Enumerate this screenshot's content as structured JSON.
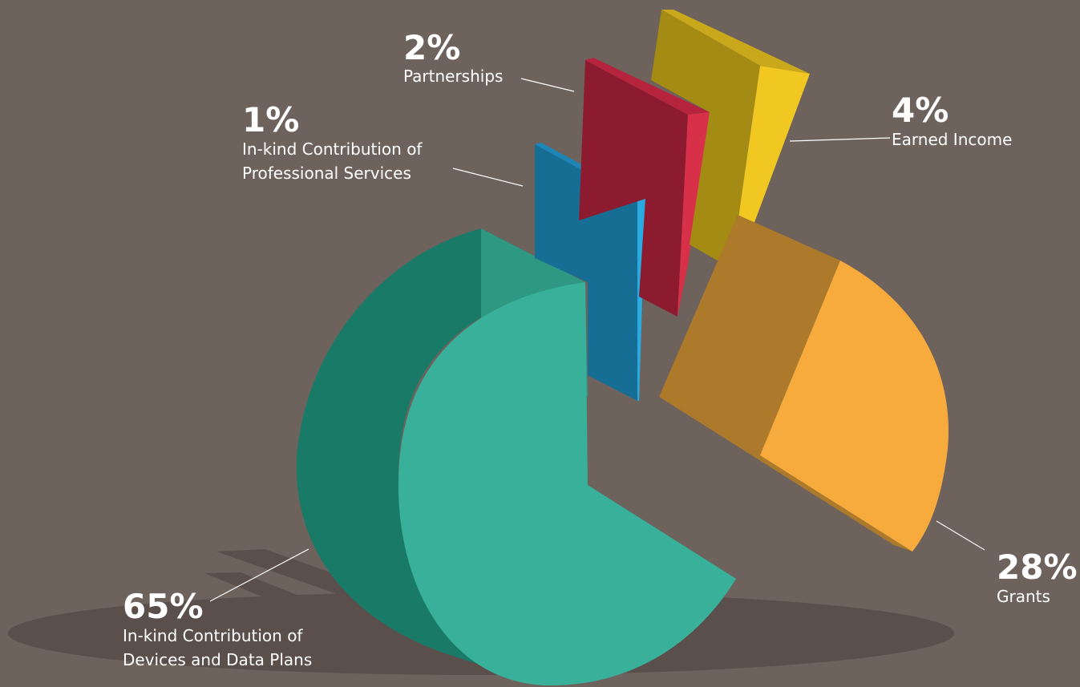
{
  "chart_data": {
    "type": "pie",
    "title": "",
    "slices": [
      {
        "label_lines": [
          "In-kind Contribution of",
          "Devices and Data Plans"
        ],
        "value": 65,
        "display": "65%",
        "color": "#39b09a",
        "side": "#1a7a68",
        "top": "#2e9883"
      },
      {
        "label_lines": [
          "In-kind Contribution of",
          "Professional Services"
        ],
        "value": 1,
        "display": "1%",
        "color": "#29abe2",
        "side": "#166e95",
        "top": "#1d86b6"
      },
      {
        "label_lines": [
          "Partnerships"
        ],
        "value": 2,
        "display": "2%",
        "color": "#d9304a",
        "side": "#8d1b2f",
        "top": "#b5243c"
      },
      {
        "label_lines": [
          "Earned Income"
        ],
        "value": 4,
        "display": "4%",
        "color": "#f0c821",
        "side": "#a38b14",
        "top": "#c9a81b"
      },
      {
        "label_lines": [
          "Grants"
        ],
        "value": 28,
        "display": "28%",
        "color": "#f7ab3c",
        "side": "#ad7a2b",
        "top": "#c98e33"
      }
    ]
  },
  "colors": {
    "background": "#6e625c",
    "shadow": "#5a4f4a"
  }
}
